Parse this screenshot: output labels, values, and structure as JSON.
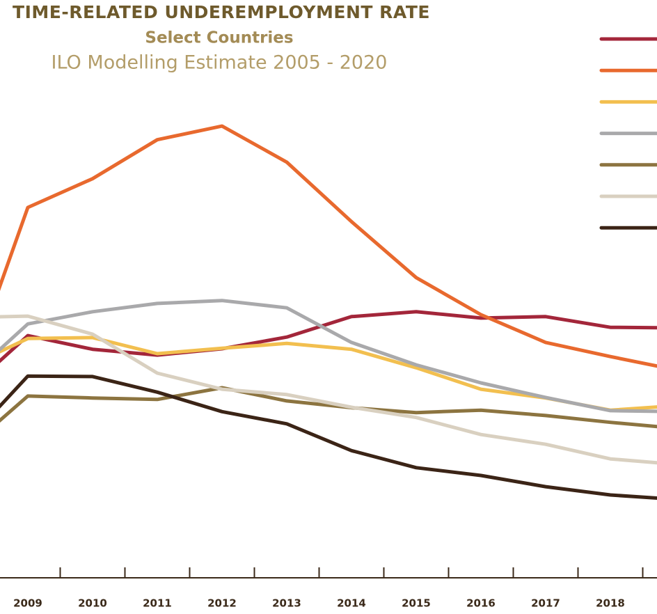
{
  "chart_data": {
    "type": "line",
    "title": "TIME-RELATED UNDEREMPLOYMENT RATE",
    "subtitle": "Select Countries",
    "note": "ILO Modelling Estimate 2005 - 2020",
    "categories": [
      null,
      "2009",
      "2010",
      "2011",
      "2012",
      "2013",
      "2014",
      "2015",
      "2016",
      "2017",
      "2018",
      null
    ],
    "ylim": [
      0,
      100
    ],
    "series": [
      {
        "color": "#a3263a",
        "values": [
          37.7,
          49.7,
          46.9,
          45.7,
          47.0,
          49.4,
          53.6,
          54.6,
          53.3,
          53.6,
          51.4,
          51.3
        ]
      },
      {
        "color": "#e8692e",
        "values": [
          38.6,
          76.0,
          81.9,
          89.9,
          92.7,
          85.3,
          73.1,
          61.6,
          54.0,
          48.3,
          45.4,
          42.7
        ]
      },
      {
        "color": "#f2bf4f",
        "values": [
          42.9,
          49.1,
          49.3,
          46.0,
          47.1,
          48.1,
          46.9,
          43.1,
          38.7,
          36.9,
          34.4,
          35.3
        ]
      },
      {
        "color": "#a9a9ab",
        "values": [
          40.0,
          52.1,
          54.6,
          56.3,
          56.9,
          55.4,
          48.3,
          43.7,
          40.0,
          37.0,
          34.3,
          34.1
        ]
      },
      {
        "color": "#8c7440",
        "values": [
          25.7,
          37.3,
          36.9,
          36.6,
          39.0,
          36.3,
          34.9,
          33.9,
          34.4,
          33.3,
          31.9,
          30.7
        ]
      },
      {
        "color": "#d9d0c0",
        "values": [
          53.4,
          53.7,
          50.0,
          42.0,
          38.7,
          37.6,
          35.0,
          32.9,
          29.4,
          27.4,
          24.4,
          23.3
        ]
      },
      {
        "color": "#3b2416",
        "values": [
          27.1,
          41.4,
          41.3,
          38.1,
          34.1,
          31.6,
          26.1,
          22.6,
          21.0,
          18.7,
          17.0,
          16.1
        ]
      }
    ]
  }
}
